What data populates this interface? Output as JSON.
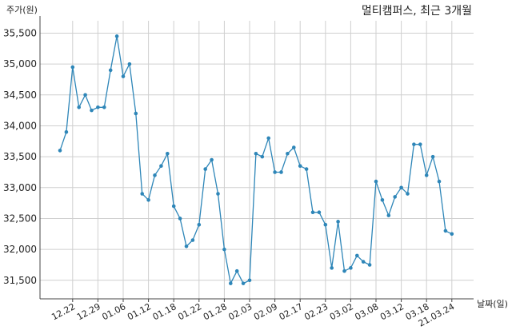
{
  "chart_data": {
    "type": "line",
    "title": "멀티캠퍼스, 최근 3개월",
    "ylabel": "주가(원)",
    "xlabel": "날짜(일)",
    "ylim": [
      31200,
      35700
    ],
    "yticks": [
      31500,
      32000,
      32500,
      33000,
      33500,
      34000,
      34500,
      35000,
      35500
    ],
    "ytick_labels": [
      "31,500",
      "32,000",
      "32,500",
      "33,000",
      "33,500",
      "34,000",
      "34,500",
      "35,000",
      "35,500"
    ],
    "xtick_labels": [
      "12.22",
      "12.29",
      "01.06",
      "01.12",
      "01.18",
      "01.22",
      "01.28",
      "02.03",
      "02.09",
      "02.17",
      "02.23",
      "03.02",
      "03.08",
      "03.12",
      "03.18",
      "21.03.24"
    ],
    "xtick_index": [
      3,
      7,
      11,
      15,
      19,
      23,
      27,
      31,
      35,
      39,
      43,
      47,
      51,
      55,
      59,
      63
    ],
    "grid": true,
    "line_color": "#2e86b8",
    "series": [
      {
        "values": [
          33600,
          33900,
          34950,
          34300,
          34500,
          34250,
          34300,
          34300,
          34900,
          35450,
          34800,
          35000,
          34200,
          32900,
          32800,
          33200,
          33350,
          33550,
          32700,
          32500,
          32050,
          32150,
          32400,
          33300,
          33450,
          32900,
          32000,
          31450,
          31650,
          31450,
          31500,
          33550,
          33500,
          33800,
          33250,
          33250,
          33550,
          33650,
          33350,
          33300,
          32600,
          32600,
          32400,
          31700,
          32450,
          31650,
          31700,
          31900,
          31800,
          31750,
          33100,
          32800,
          32550,
          32850,
          33000,
          32900,
          33700,
          33700,
          33200,
          33500,
          33100,
          32300,
          32250
        ]
      }
    ]
  }
}
